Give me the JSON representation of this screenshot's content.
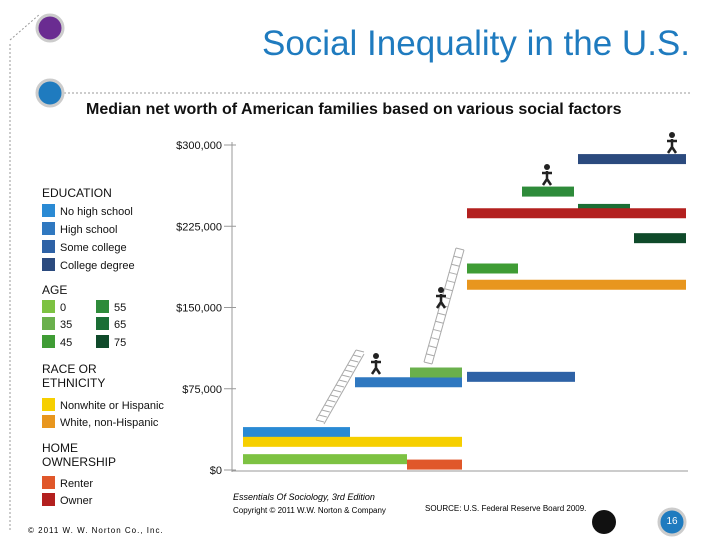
{
  "title": "Social Inequality in the U.S.",
  "chart_data": {
    "type": "bar",
    "subtitle": "Median net worth of American families based on various social factors",
    "ylim": [
      0,
      300000
    ],
    "yticks": [
      {
        "value": 300000,
        "label": "$300,000"
      },
      {
        "value": 225000,
        "label": "$225,000"
      },
      {
        "value": 150000,
        "label": "$150,000"
      },
      {
        "value": 75000,
        "label": "$75,000"
      },
      {
        "value": 0,
        "label": "$0"
      }
    ],
    "groups": [
      {
        "name": "EDUCATION",
        "items": [
          {
            "name": "No high school",
            "color": "#2a8ad4",
            "value": 35000
          },
          {
            "name": "High school",
            "color": "#2f78c0",
            "value": 81000
          },
          {
            "name": "Some college",
            "color": "#2e62a6",
            "value": 86000
          },
          {
            "name": "College degree",
            "color": "#2b4a7e",
            "value": 287000
          }
        ]
      },
      {
        "name": "AGE",
        "items": [
          {
            "name": "0",
            "color": "#7dc242",
            "value": 10000
          },
          {
            "name": "35",
            "color": "#6ab04c",
            "value": 90000
          },
          {
            "name": "45",
            "color": "#3f9c35",
            "value": 186000
          },
          {
            "name": "55",
            "color": "#2e8b3a",
            "value": 257000
          },
          {
            "name": "65",
            "color": "#1b6e35",
            "value": 241000
          },
          {
            "name": "75",
            "color": "#0f4a2a",
            "value": 214000
          }
        ]
      },
      {
        "name": "RACE OR ETHNICITY",
        "items": [
          {
            "name": "Nonwhite or Hispanic",
            "color": "#f6cf00",
            "value": 26000
          },
          {
            "name": "White, non-Hispanic",
            "color": "#e8961e",
            "value": 171000
          }
        ]
      },
      {
        "name": "HOME OWNERSHIP",
        "items": [
          {
            "name": "Renter",
            "color": "#e0572a",
            "value": 5000
          },
          {
            "name": "Owner",
            "color": "#b3201f",
            "value": 237000
          }
        ]
      }
    ]
  },
  "footer": {
    "book": "Essentials Of Sociology, 3rd Edition",
    "copyright": "Copyright © 2011 W.W. Norton & Company",
    "source": "SOURCE: U.S. Federal Reserve Board 2009.",
    "publisher": "© 2011 W. W. Norton Co., Inc.",
    "page": "16"
  }
}
